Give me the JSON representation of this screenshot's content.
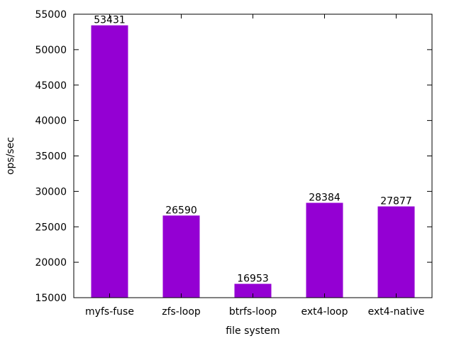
{
  "chart_data": {
    "type": "bar",
    "title": "",
    "xlabel": "file system",
    "ylabel": "ops/sec",
    "categories": [
      "myfs-fuse",
      "zfs-loop",
      "btrfs-loop",
      "ext4-loop",
      "ext4-native"
    ],
    "values": [
      53431,
      26590,
      16953,
      28384,
      27877
    ],
    "data_labels": [
      "53431",
      "26590",
      "16953",
      "28384",
      "27877"
    ],
    "ylim": [
      15000,
      55000
    ],
    "yticks": [
      15000,
      20000,
      25000,
      30000,
      35000,
      40000,
      45000,
      50000,
      55000
    ],
    "ytick_labels": [
      "15000",
      "20000",
      "25000",
      "30000",
      "35000",
      "40000",
      "45000",
      "50000",
      "55000"
    ],
    "grid": false,
    "legend": "none",
    "colors": {
      "bar": "#9400d3",
      "axis": "#000000"
    }
  }
}
